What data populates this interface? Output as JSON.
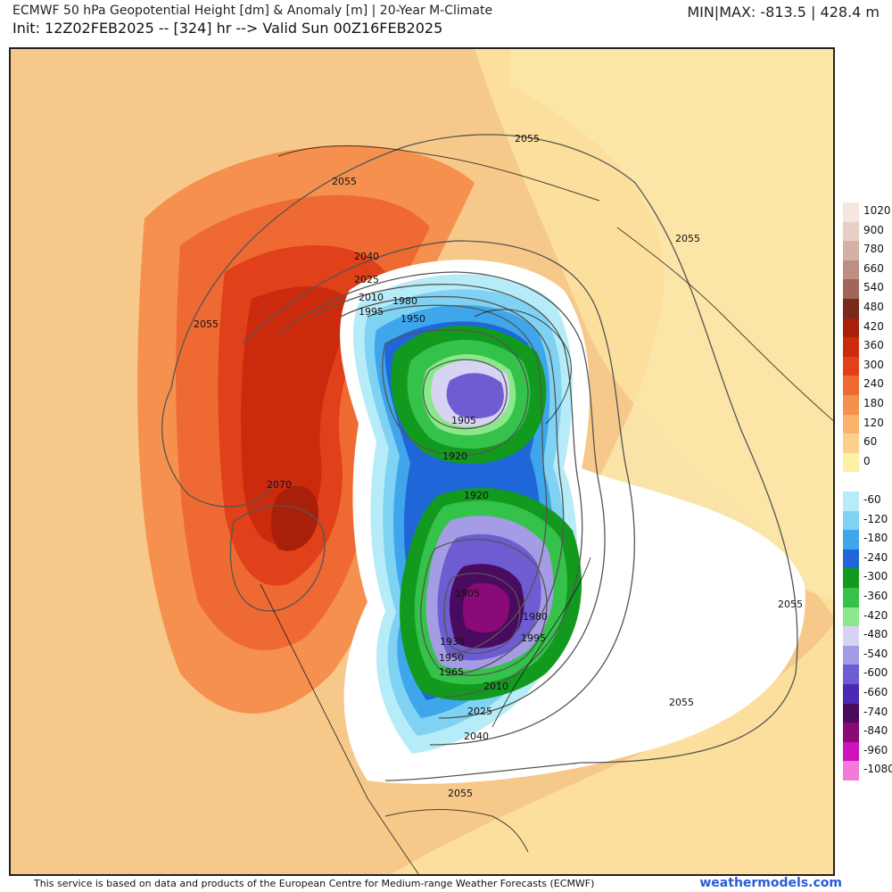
{
  "header": {
    "title": "ECMWF 50 hPa Geopotential Height [dm] & Anomaly [m] | 20-Year M-Climate",
    "init": "Init: 12Z02FEB2025 -- [324] hr --> Valid Sun 00Z16FEB2025",
    "minmax": "MIN|MAX: -813.5 | 428.4 m"
  },
  "colorbar": {
    "entries": [
      {
        "label": "1020",
        "color": "#f6e6e2"
      },
      {
        "label": "900",
        "color": "#e8cfc8"
      },
      {
        "label": "780",
        "color": "#d4b0a6"
      },
      {
        "label": "660",
        "color": "#bd8e83"
      },
      {
        "label": "540",
        "color": "#a0665a"
      },
      {
        "label": "480",
        "color": "#7a2a1a"
      },
      {
        "label": "420",
        "color": "#a8200a"
      },
      {
        "label": "360",
        "color": "#cc2a0c"
      },
      {
        "label": "300",
        "color": "#e0401a"
      },
      {
        "label": "240",
        "color": "#ef6a32"
      },
      {
        "label": "180",
        "color": "#f6904e"
      },
      {
        "label": "120",
        "color": "#f8b26a"
      },
      {
        "label": "60",
        "color": "#fbd08a"
      },
      {
        "label": "0",
        "color": "#fcf2a6"
      },
      {
        "label": "",
        "color": "#ffffff"
      },
      {
        "label": "-60",
        "color": "#b6ecf8"
      },
      {
        "label": "-120",
        "color": "#7fd2f2"
      },
      {
        "label": "-180",
        "color": "#3fa6ec"
      },
      {
        "label": "-240",
        "color": "#1f66d8"
      },
      {
        "label": "-300",
        "color": "#129a1e"
      },
      {
        "label": "-360",
        "color": "#34c24a"
      },
      {
        "label": "-420",
        "color": "#8ae88a"
      },
      {
        "label": "-480",
        "color": "#d6d4f2"
      },
      {
        "label": "-540",
        "color": "#a49ce4"
      },
      {
        "label": "-600",
        "color": "#6e5cd2"
      },
      {
        "label": "-660",
        "color": "#4a2ab2"
      },
      {
        "label": "-740",
        "color": "#4a0a5e"
      },
      {
        "label": "-840",
        "color": "#8a0a78"
      },
      {
        "label": "-960",
        "color": "#d012ba"
      },
      {
        "label": "-1080",
        "color": "#f27ad8"
      }
    ]
  },
  "contour_labels": [
    "2055",
    "2055",
    "2055",
    "2055",
    "2040",
    "2025",
    "2010",
    "1995",
    "1980",
    "1950",
    "2055",
    "1905",
    "1920",
    "2070",
    "1920",
    "1905",
    "1980",
    "1995",
    "1935",
    "1950",
    "1965",
    "2010",
    "2025",
    "2040",
    "2055",
    "2055"
  ],
  "footer": {
    "credit": "This service is based on data and products of the European Centre for Medium-range Weather Forecasts (ECMWF)",
    "site": "weathermodels.com"
  },
  "colors": {
    "background_warm": "#f6c98a",
    "contour": "#555555",
    "coast": "#111111",
    "link": "#2a5bd7"
  }
}
